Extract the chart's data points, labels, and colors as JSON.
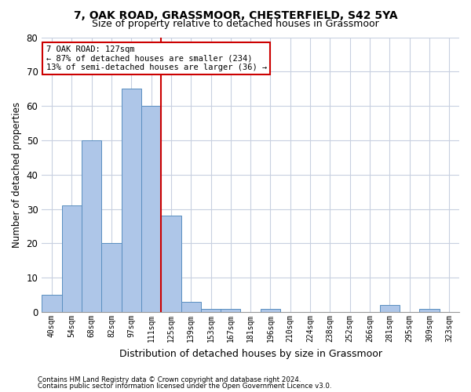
{
  "title": "7, OAK ROAD, GRASSMOOR, CHESTERFIELD, S42 5YA",
  "subtitle": "Size of property relative to detached houses in Grassmoor",
  "xlabel": "Distribution of detached houses by size in Grassmoor",
  "ylabel": "Number of detached properties",
  "footer1": "Contains HM Land Registry data © Crown copyright and database right 2024.",
  "footer2": "Contains public sector information licensed under the Open Government Licence v3.0.",
  "annotation_line1": "7 OAK ROAD: 127sqm",
  "annotation_line2": "← 87% of detached houses are smaller (234)",
  "annotation_line3": "13% of semi-detached houses are larger (36) →",
  "bar_labels": [
    "40sqm",
    "54sqm",
    "68sqm",
    "82sqm",
    "97sqm",
    "111sqm",
    "125sqm",
    "139sqm",
    "153sqm",
    "167sqm",
    "181sqm",
    "196sqm",
    "210sqm",
    "224sqm",
    "238sqm",
    "252sqm",
    "266sqm",
    "281sqm",
    "295sqm",
    "309sqm",
    "323sqm"
  ],
  "bar_values": [
    5,
    31,
    50,
    20,
    65,
    60,
    28,
    3,
    1,
    1,
    0,
    1,
    0,
    0,
    0,
    0,
    0,
    2,
    0,
    1,
    0
  ],
  "bar_color": "#aec6e8",
  "bar_edge_color": "#5a8fc0",
  "vline_index": 6,
  "vline_color": "#cc0000",
  "ylim": [
    0,
    80
  ],
  "yticks": [
    0,
    10,
    20,
    30,
    40,
    50,
    60,
    70,
    80
  ],
  "background_color": "#ffffff",
  "grid_color": "#c8d0e0",
  "annotation_box_color": "#ffffff",
  "annotation_box_edge": "#cc0000",
  "title_fontsize": 10,
  "subtitle_fontsize": 9
}
